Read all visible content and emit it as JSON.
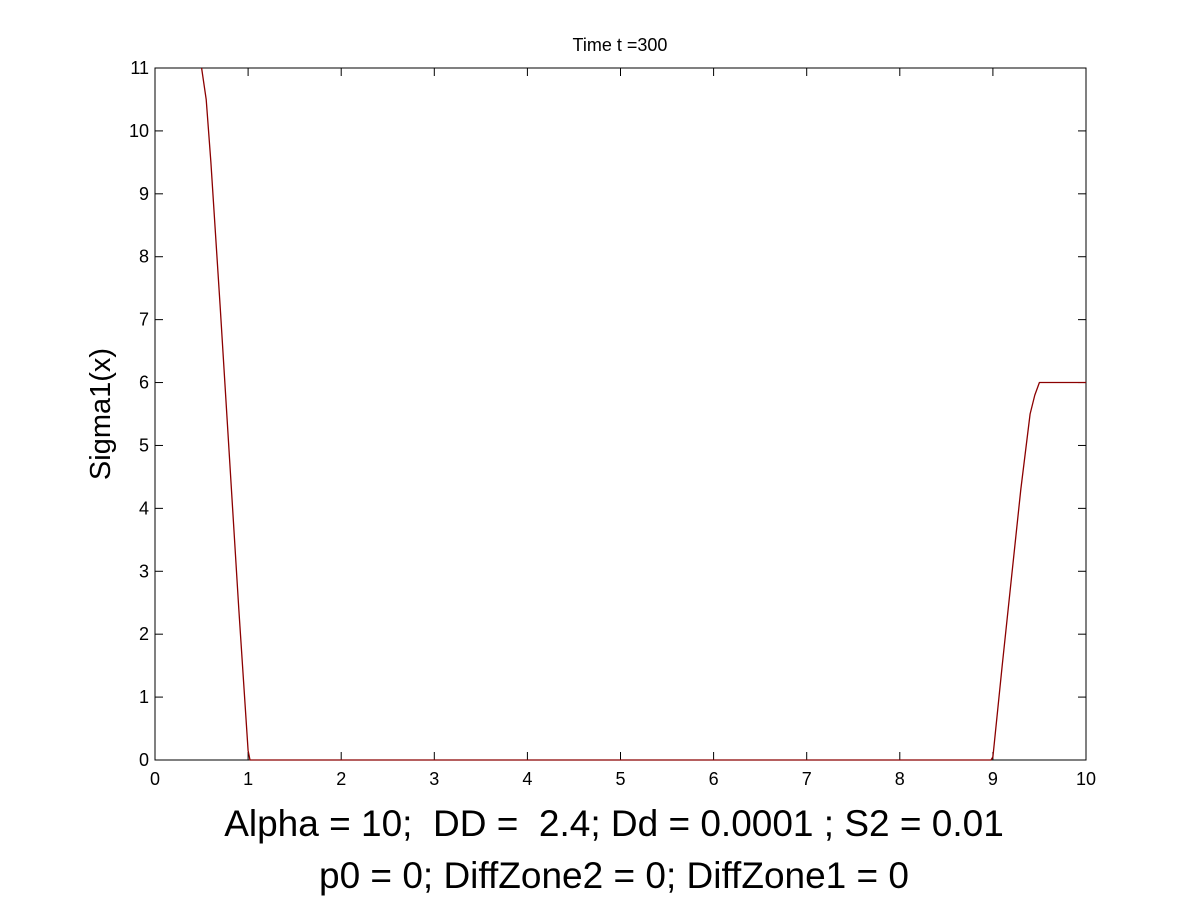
{
  "chart_data": {
    "type": "line",
    "title": "Time t =300",
    "ylabel": "Sigma1(x)",
    "xlabel_lines": [
      "Alpha = 10;  DD =  2.4; Dd = 0.0001 ; S2 = 0.01",
      "p0 = 0; DiffZone2 = 0; DiffZone1 = 0"
    ],
    "xlim": [
      0,
      10
    ],
    "ylim": [
      0,
      11
    ],
    "xticks": [
      0,
      1,
      2,
      3,
      4,
      5,
      6,
      7,
      8,
      9,
      10
    ],
    "yticks": [
      0,
      1,
      2,
      3,
      4,
      5,
      6,
      7,
      8,
      9,
      10,
      11
    ],
    "grid": false,
    "series": [
      {
        "color": "#8b0000",
        "x": [
          0.5,
          0.55,
          0.6,
          0.7,
          0.8,
          0.9,
          1.0,
          1.02,
          2,
          3,
          4,
          5,
          6,
          7,
          8,
          8.98,
          9.0,
          9.1,
          9.2,
          9.3,
          9.4,
          9.45,
          9.5,
          9.55,
          10.0
        ],
        "y": [
          11.0,
          10.5,
          9.5,
          7.2,
          4.8,
          2.4,
          0.15,
          0,
          0,
          0,
          0,
          0,
          0,
          0,
          0,
          0,
          0.05,
          1.5,
          2.9,
          4.3,
          5.5,
          5.8,
          6.0,
          6.0,
          6.0
        ]
      }
    ]
  }
}
